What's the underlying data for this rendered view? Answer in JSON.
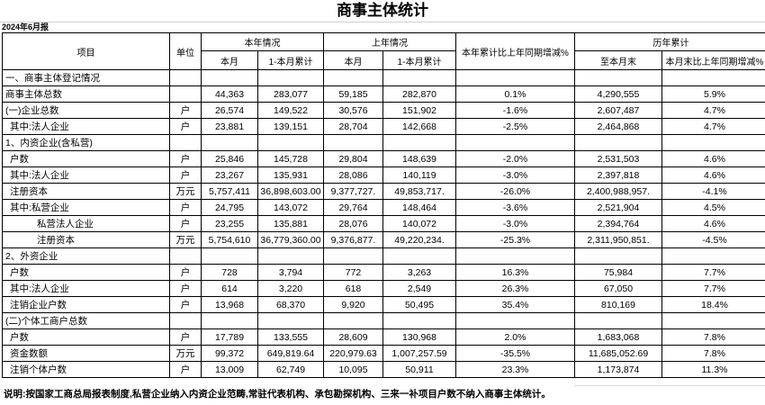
{
  "meta": {
    "title": "商事主体统计",
    "period": "2024年6月报"
  },
  "table": {
    "header": {
      "item": "项目",
      "unit": "单位",
      "this_year": "本年情况",
      "last_year": "上年情况",
      "yoy_change": "本年累计比上年同期增减%",
      "historical": "历年累计",
      "month": "本月",
      "month_cum": "1-本月累计",
      "to_month_end": "至本月末",
      "month_end_yoy": "本月末比上年同期增减%"
    },
    "rows": [
      {
        "label": "一、商事主体登记情况",
        "bold": true,
        "indent": 0,
        "unit": "",
        "values": [
          "",
          "",
          "",
          "",
          "",
          "",
          ""
        ]
      },
      {
        "label": "商事主体总数",
        "bold": true,
        "indent": 0,
        "unit": "",
        "values": [
          "44,363",
          "283,077",
          "59,185",
          "282,870",
          "0.1%",
          "4,290,555",
          "5.9%"
        ]
      },
      {
        "label": "(一)企业总数",
        "bold": true,
        "indent": 0,
        "unit": "户",
        "values": [
          "26,574",
          "149,522",
          "30,576",
          "151,902",
          "-1.6%",
          "2,607,487",
          "4.7%"
        ]
      },
      {
        "label": "其中:法人企业",
        "bold": false,
        "indent": 1,
        "unit": "户",
        "values": [
          "23,881",
          "139,151",
          "28,704",
          "142,668",
          "-2.5%",
          "2,464,868",
          "4.7%"
        ]
      },
      {
        "label": "1、内资企业(含私营)",
        "bold": false,
        "indent": 0,
        "unit": "",
        "values": [
          "",
          "",
          "",
          "",
          "",
          "",
          ""
        ]
      },
      {
        "label": "户数",
        "bold": false,
        "indent": 1,
        "unit": "户",
        "values": [
          "25,846",
          "145,728",
          "29,804",
          "148,639",
          "-2.0%",
          "2,531,503",
          "4.6%"
        ]
      },
      {
        "label": "其中:法人企业",
        "bold": false,
        "indent": 1,
        "unit": "户",
        "values": [
          "23,267",
          "135,931",
          "28,086",
          "140,119",
          "-3.0%",
          "2,397,818",
          "4.6%"
        ]
      },
      {
        "label": "注册资本",
        "bold": false,
        "indent": 1,
        "unit": "万元",
        "values": [
          "5,757,411",
          "36,898,603.00",
          "9,377,727.",
          "49,853,717.",
          "-26.0%",
          "2,400,988,957.",
          "-4.1%"
        ]
      },
      {
        "label": "其中:私营企业",
        "bold": false,
        "indent": 1,
        "unit": "户",
        "values": [
          "24,795",
          "143,072",
          "29,764",
          "148,464",
          "-3.6%",
          "2,521,904",
          "4.5%"
        ]
      },
      {
        "label": "私营法人企业",
        "bold": false,
        "indent": 2,
        "unit": "户",
        "values": [
          "23,255",
          "135,881",
          "28,076",
          "140,072",
          "-3.0%",
          "2,394,764",
          "4.6%"
        ]
      },
      {
        "label": "注册资本",
        "bold": false,
        "indent": 2,
        "unit": "万元",
        "values": [
          "5,754,610",
          "36,779,360.00",
          "9,376,877.",
          "49,220,234.",
          "-25.3%",
          "2,311,950,851.",
          "-4.5%"
        ]
      },
      {
        "label": "2、外资企业",
        "bold": false,
        "indent": 0,
        "unit": "",
        "values": [
          "",
          "",
          "",
          "",
          "",
          "",
          ""
        ]
      },
      {
        "label": "户数",
        "bold": false,
        "indent": 1,
        "unit": "户",
        "values": [
          "728",
          "3,794",
          "772",
          "3,263",
          "16.3%",
          "75,984",
          "7.7%"
        ]
      },
      {
        "label": "其中:法人企业",
        "bold": false,
        "indent": 1,
        "unit": "户",
        "values": [
          "614",
          "3,220",
          "618",
          "2,549",
          "26.3%",
          "67,050",
          "7.7%"
        ]
      },
      {
        "label": "注销企业户数",
        "bold": false,
        "indent": 1,
        "unit": "户",
        "values": [
          "13,968",
          "68,370",
          "9,920",
          "50,495",
          "35.4%",
          "810,169",
          "18.4%"
        ]
      },
      {
        "label": "(二)个体工商户总数",
        "bold": true,
        "indent": 0,
        "unit": "",
        "values": [
          "",
          "",
          "",
          "",
          "",
          "",
          ""
        ]
      },
      {
        "label": "户数",
        "bold": false,
        "indent": 1,
        "unit": "户",
        "values": [
          "17,789",
          "133,555",
          "28,609",
          "130,968",
          "2.0%",
          "1,683,068",
          "7.8%"
        ]
      },
      {
        "label": "资金数额",
        "bold": false,
        "indent": 1,
        "unit": "万元",
        "values": [
          "99,372",
          "649,819.64",
          "220,979.63",
          "1,007,257.59",
          "-35.5%",
          "11,685,052.69",
          "7.8%"
        ]
      },
      {
        "label": "注销个体户数",
        "bold": false,
        "indent": 1,
        "unit": "户",
        "values": [
          "13,009",
          "62,749",
          "10,095",
          "50,911",
          "23.3%",
          "1,173,874",
          "11.3%"
        ]
      }
    ]
  },
  "footer": {
    "note": "说明:按国家工商总局报表制度,私营企业纳入内资企业范畴,常驻代表机构、承包勘探机构、三来一补项目户数不纳入商事主体统计。"
  }
}
